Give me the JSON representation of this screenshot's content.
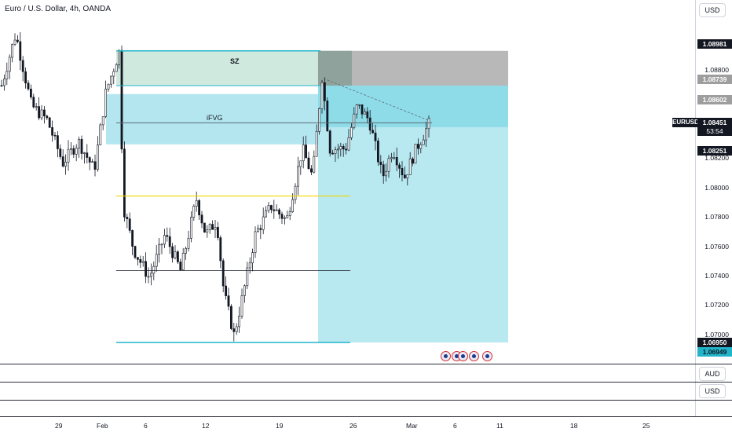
{
  "header": {
    "title": "Euro / U.S. Dollar, 4h, OANDA"
  },
  "currency_buttons": {
    "top": "USD",
    "pane2": "AUD",
    "pane3": "USD"
  },
  "zones": {
    "sz_label": "SZ",
    "ifvg_label": "iFVG"
  },
  "symbol": {
    "ticker": "EURUSD",
    "price": "1.08451",
    "countdown": "53:54"
  },
  "price_axis": {
    "ticks": [
      "1.08800",
      "1.08200",
      "1.08000",
      "1.07800",
      "1.07600",
      "1.07400",
      "1.07200",
      "1.07000"
    ],
    "tags": [
      {
        "text": "1.08981",
        "bg": "#131722",
        "fg": "#ffffff"
      },
      {
        "text": "1.08739",
        "bg": "#9e9e9e",
        "fg": "#ffffff"
      },
      {
        "text": "1.08602",
        "bg": "#9e9e9e",
        "fg": "#ffffff"
      },
      {
        "text": "1.08251",
        "bg": "#131722",
        "fg": "#ffffff"
      },
      {
        "text": "1.06950",
        "bg": "#131722",
        "fg": "#ffffff"
      },
      {
        "text": "1.06949",
        "bg": "#22b5c9",
        "fg": "#131722"
      }
    ]
  },
  "time_axis": [
    "29",
    "Feb",
    "6",
    "12",
    "19",
    "26",
    "Mar",
    "6",
    "11",
    "18",
    "25"
  ],
  "colors": {
    "sz_fill": "#cfe9df",
    "ifvg_fill": "#b3e6ef",
    "target_fill": "#b8e8f0",
    "grey_zone": "#b8b8b8",
    "dark_grey": "#8fa39c",
    "cyan_line": "#22b5c9",
    "yellow_line": "#f2d600",
    "candle": "#131722"
  },
  "chart_data": {
    "type": "candlestick",
    "symbol": "EURUSD",
    "interval": "4h",
    "ylim": [
      1.069,
      1.0915
    ],
    "last_price": 1.08451,
    "levels": {
      "sz_top": 1.08981,
      "sz_bottom": 1.08739,
      "ifvg_top": 1.0868,
      "ifvg_bottom": 1.0833,
      "ifvg_mid": 1.0848,
      "yellow": 1.0797,
      "mid_black": 1.0745,
      "low": 1.0695
    },
    "x_labels": [
      "29",
      "Feb",
      "6",
      "12",
      "19",
      "26",
      "Mar",
      "6",
      "11",
      "18",
      "25"
    ]
  }
}
